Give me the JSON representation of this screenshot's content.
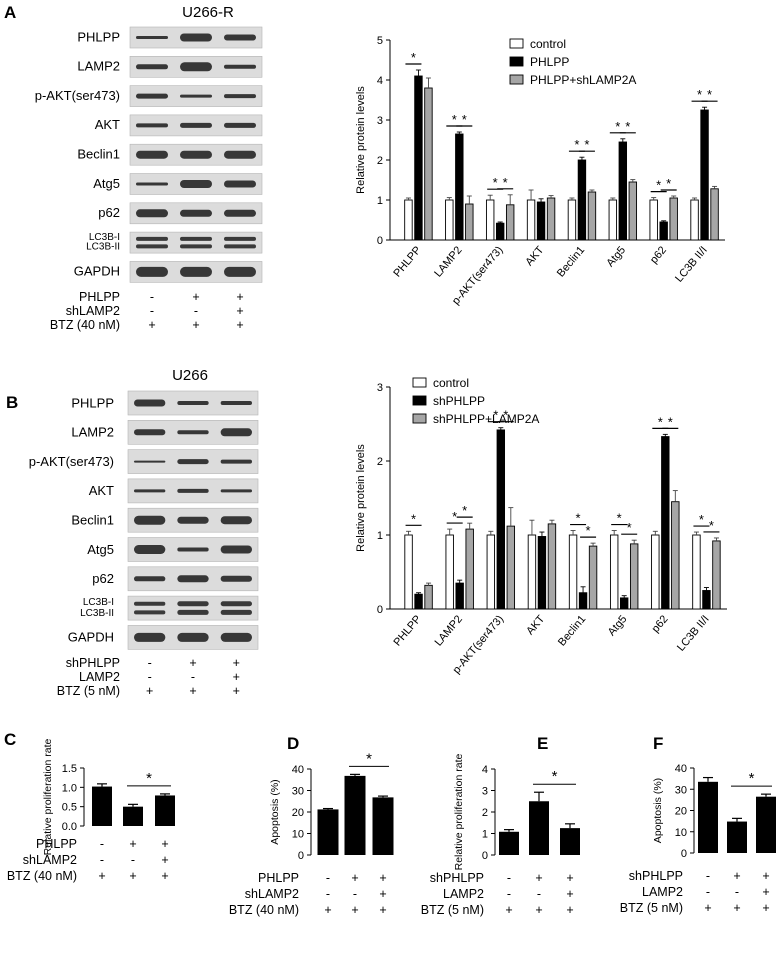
{
  "panel_labels": {
    "A": "A",
    "B": "B",
    "C": "C",
    "D": "D",
    "E": "E",
    "F": "F"
  },
  "blotA": {
    "title": "U266-R",
    "rows": [
      "PHLPP",
      "LAMP2",
      "p-AKT(ser473)",
      "AKT",
      "Beclin1",
      "Atg5",
      "p62",
      "LC3B-I|LC3B-II",
      "GAPDH"
    ],
    "conditions": [
      {
        "label": "PHLPP",
        "marks": [
          "-",
          "+",
          "+"
        ]
      },
      {
        "label": "shLAMP2",
        "marks": [
          "-",
          "-",
          "+"
        ]
      },
      {
        "label": "BTZ (40 nM)",
        "marks": [
          "+",
          "+",
          "+"
        ]
      }
    ]
  },
  "blotB": {
    "title": "U266",
    "rows": [
      "PHLPP",
      "LAMP2",
      "p-AKT(ser473)",
      "AKT",
      "Beclin1",
      "Atg5",
      "p62",
      "LC3B-I|LC3B-II",
      "GAPDH"
    ],
    "conditions": [
      {
        "label": "shPHLPP",
        "marks": [
          "-",
          "+",
          "+"
        ]
      },
      {
        "label": "LAMP2",
        "marks": [
          "-",
          "-",
          "+"
        ]
      },
      {
        "label": "BTZ (5 nM)",
        "marks": [
          "+",
          "+",
          "+"
        ]
      }
    ]
  },
  "colors": {
    "control": "#ffffff",
    "treat": "#000000",
    "combo": "#a6a6a6"
  },
  "chart_data": [
    {
      "id": "A",
      "type": "bar",
      "ylabel": "Relative protein levels",
      "ylim": [
        0,
        5
      ],
      "yticks": [
        0,
        1,
        2,
        3,
        4,
        5
      ],
      "categories": [
        "PHLPP",
        "LAMP2",
        "p-AKT(ser473)",
        "AKT",
        "Beclin1",
        "Atg5",
        "p62",
        "LC3B II/I"
      ],
      "legend_position": "top-right",
      "series": [
        {
          "name": "control",
          "values": [
            1.0,
            1.0,
            1.0,
            1.0,
            1.0,
            1.0,
            1.0,
            1.0
          ],
          "errors": [
            0.05,
            0.06,
            0.12,
            0.25,
            0.05,
            0.05,
            0.06,
            0.05
          ]
        },
        {
          "name": "PHLPP",
          "values": [
            4.1,
            2.65,
            0.42,
            0.95,
            2.0,
            2.45,
            0.45,
            3.25
          ],
          "errors": [
            0.15,
            0.05,
            0.03,
            0.08,
            0.07,
            0.08,
            0.03,
            0.07
          ]
        },
        {
          "name": "PHLPP+shLAMP2A",
          "values": [
            3.8,
            0.9,
            0.88,
            1.05,
            1.2,
            1.45,
            1.05,
            1.28
          ],
          "errors": [
            0.25,
            0.2,
            0.25,
            0.06,
            0.05,
            0.06,
            0.05,
            0.06
          ]
        }
      ],
      "sig": [
        [
          0,
          "01"
        ],
        [
          1,
          "01"
        ],
        [
          1,
          "12"
        ],
        [
          2,
          "01"
        ],
        [
          2,
          "12"
        ],
        [
          4,
          "01"
        ],
        [
          4,
          "12"
        ],
        [
          5,
          "01"
        ],
        [
          5,
          "12"
        ],
        [
          6,
          "01"
        ],
        [
          6,
          "12"
        ],
        [
          7,
          "01"
        ],
        [
          7,
          "12"
        ]
      ],
      "sig_mark": "*"
    },
    {
      "id": "B",
      "type": "bar",
      "ylabel": "Relative protein levels",
      "ylim": [
        0,
        3
      ],
      "yticks": [
        0,
        1,
        2,
        3
      ],
      "categories": [
        "PHLPP",
        "LAMP2",
        "p-AKT(ser473)",
        "AKT",
        "Beclin1",
        "Atg5",
        "p62",
        "LC3B II/I"
      ],
      "legend_position": "top-right",
      "series": [
        {
          "name": "control",
          "values": [
            1.0,
            1.0,
            1.0,
            1.0,
            1.0,
            1.0,
            1.0,
            1.0
          ],
          "errors": [
            0.05,
            0.08,
            0.05,
            0.2,
            0.06,
            0.06,
            0.05,
            0.04
          ]
        },
        {
          "name": "shPHLPP",
          "values": [
            0.2,
            0.35,
            2.42,
            0.98,
            0.22,
            0.15,
            2.33,
            0.25
          ],
          "errors": [
            0.02,
            0.04,
            0.03,
            0.06,
            0.08,
            0.03,
            0.03,
            0.04
          ]
        },
        {
          "name": "shPHLPP+LAMP2A",
          "values": [
            0.32,
            1.08,
            1.12,
            1.15,
            0.85,
            0.88,
            1.45,
            0.92
          ],
          "errors": [
            0.03,
            0.08,
            0.25,
            0.05,
            0.04,
            0.05,
            0.15,
            0.04
          ]
        }
      ],
      "sig": [
        [
          0,
          "01"
        ],
        [
          1,
          "01"
        ],
        [
          1,
          "12"
        ],
        [
          2,
          "01"
        ],
        [
          2,
          "12"
        ],
        [
          4,
          "01"
        ],
        [
          4,
          "12"
        ],
        [
          5,
          "01"
        ],
        [
          5,
          "12"
        ],
        [
          6,
          "01"
        ],
        [
          6,
          "12"
        ],
        [
          7,
          "01"
        ],
        [
          7,
          "12"
        ]
      ],
      "sig_mark": "*"
    },
    {
      "id": "C",
      "type": "bar",
      "ylabel": "Relative proliferation rate",
      "ylim": [
        0,
        1.5
      ],
      "yticks": [
        0.0,
        0.5,
        1.0,
        1.5
      ],
      "ytick_labels": [
        "0.0",
        "0.5",
        "1.0",
        "1.5"
      ],
      "values": [
        1.02,
        0.5,
        0.79
      ],
      "errors": [
        0.07,
        0.06,
        0.04
      ],
      "sig_mark": "*",
      "conditions": [
        {
          "label": "PHLPP",
          "marks": [
            "-",
            "+",
            "+"
          ]
        },
        {
          "label": "shLAMP2",
          "marks": [
            "-",
            "-",
            "+"
          ]
        },
        {
          "label": "BTZ (40 nM)",
          "marks": [
            "+",
            "+",
            "+"
          ]
        }
      ]
    },
    {
      "id": "D",
      "type": "bar",
      "ylabel": "Apoptosis (%)",
      "ylim": [
        0,
        40
      ],
      "yticks": [
        0,
        10,
        20,
        30,
        40
      ],
      "ytick_labels": [
        "0",
        "10",
        "20",
        "30",
        "40"
      ],
      "values": [
        21.2,
        36.8,
        26.8
      ],
      "errors": [
        0.4,
        0.7,
        0.6
      ],
      "sig_mark": "*",
      "conditions": [
        {
          "label": "PHLPP",
          "marks": [
            "-",
            "+",
            "+"
          ]
        },
        {
          "label": "shLAMP2",
          "marks": [
            "-",
            "-",
            "+"
          ]
        },
        {
          "label": "BTZ (40 nM)",
          "marks": [
            "+",
            "+",
            "+"
          ]
        }
      ]
    },
    {
      "id": "E",
      "type": "bar",
      "ylabel": "Relative proliferation rate",
      "ylim": [
        0,
        4
      ],
      "yticks": [
        0,
        1,
        2,
        3,
        4
      ],
      "ytick_labels": [
        "0",
        "1",
        "2",
        "3",
        "4"
      ],
      "values": [
        1.08,
        2.5,
        1.25
      ],
      "errors": [
        0.1,
        0.42,
        0.2
      ],
      "sig_mark": "*",
      "conditions": [
        {
          "label": "shPHLPP",
          "marks": [
            "-",
            "+",
            "+"
          ]
        },
        {
          "label": "LAMP2",
          "marks": [
            "-",
            "-",
            "+"
          ]
        },
        {
          "label": "BTZ (5 nM)",
          "marks": [
            "+",
            "+",
            "+"
          ]
        }
      ]
    },
    {
      "id": "F",
      "type": "bar",
      "ylabel": "Apoptosis (%)",
      "ylim": [
        0,
        40
      ],
      "yticks": [
        0,
        10,
        20,
        30,
        40
      ],
      "ytick_labels": [
        "0",
        "10",
        "20",
        "30",
        "40"
      ],
      "values": [
        33.5,
        14.8,
        26.5
      ],
      "errors": [
        2.0,
        1.5,
        1.2
      ],
      "sig_mark": "*",
      "conditions": [
        {
          "label": "shPHLPP",
          "marks": [
            "-",
            "+",
            "+"
          ]
        },
        {
          "label": "LAMP2",
          "marks": [
            "-",
            "-",
            "+"
          ]
        },
        {
          "label": "BTZ (5 nM)",
          "marks": [
            "+",
            "+",
            "+"
          ]
        }
      ]
    }
  ]
}
